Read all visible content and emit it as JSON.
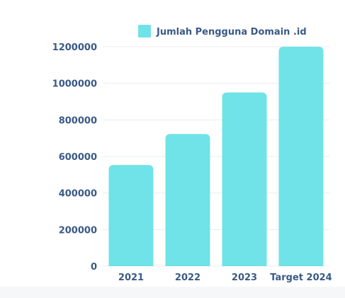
{
  "chart_data": {
    "type": "bar",
    "categories": [
      "2021",
      "2022",
      "2023",
      "Target 2024"
    ],
    "series": [
      {
        "name": "Jumlah Pengguna Domain .id",
        "values": [
          553000,
          723000,
          950000,
          1200000
        ],
        "color": "#6fe3e7"
      }
    ],
    "yticks": [
      0,
      200000,
      400000,
      600000,
      800000,
      1000000,
      1200000
    ],
    "ylim": [
      0,
      1200000
    ],
    "grid": true,
    "legend_position": "top-center"
  }
}
